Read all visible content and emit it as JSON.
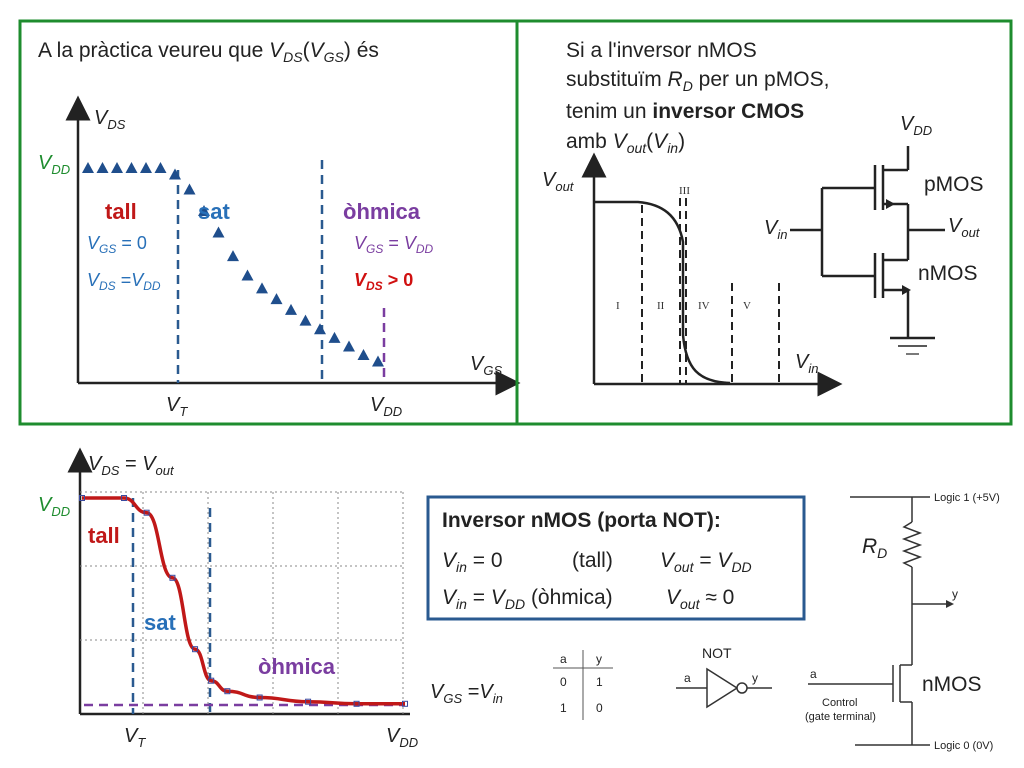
{
  "top_left": {
    "title_prefix": "A la pràctica veureu que ",
    "title_v": "V",
    "title_sub1": "DS",
    "title_paren_open": "(",
    "title_v2": "V",
    "title_sub2": "GS",
    "title_suffix": ") és",
    "y_axis": {
      "v": "V",
      "sub": "DS"
    },
    "x_axis": {
      "v": "V",
      "sub": "GS"
    },
    "vdd_y": {
      "v": "V",
      "sub": "DD"
    },
    "vt_x": {
      "v": "V",
      "sub": "T"
    },
    "vdd_x": {
      "v": "V",
      "sub": "DD"
    },
    "region_tall": "tall",
    "region_sat": "sat",
    "region_ohmica": "òhmica",
    "cond_tall_1": {
      "v": "V",
      "sub": "GS",
      "rest": " = 0"
    },
    "cond_tall_2": {
      "v": "V",
      "sub": "DS",
      "eq": " =",
      "v2": "V",
      "sub2": "DD"
    },
    "cond_ohm_1": {
      "v": "V",
      "sub": "GS",
      "eq": " = ",
      "v2": "V",
      "sub2": "DD"
    },
    "cond_ohm_2": {
      "v": "V",
      "sub": "DS",
      "rest": " > 0"
    }
  },
  "top_right": {
    "line1": "Si a l'inversor nMOS",
    "line2_pre": "substituïm ",
    "line2_r": "R",
    "line2_rsub": "D",
    "line2_post": " per un pMOS,",
    "line3_pre": "tenim un ",
    "line3_bold": "inversor CMOS",
    "line4_pre": "amb ",
    "line4_v": "V",
    "line4_sub": "out",
    "line4_open": "(",
    "line4_v2": "V",
    "line4_sub2": "in",
    "line4_close": ")",
    "y_axis": {
      "v": "V",
      "sub": "out"
    },
    "x_axis": {
      "v": "V",
      "sub": "in"
    },
    "regions": [
      "I",
      "II",
      "III",
      "IV",
      "V"
    ],
    "circuit": {
      "vdd": {
        "v": "V",
        "sub": "DD"
      },
      "pmos": "pMOS",
      "nmos": "nMOS",
      "vin": {
        "v": "V",
        "sub": "in"
      },
      "vout": {
        "v": "V",
        "sub": "out"
      }
    }
  },
  "bottom_left": {
    "y_axis": {
      "v": "V",
      "sub": "DS",
      "eq": " = ",
      "v2": "V",
      "sub2": "out"
    },
    "x_axis": {
      "v": "V",
      "sub": "GS",
      "eq": " =",
      "v2": "V",
      "sub2": "in"
    },
    "vdd_y": {
      "v": "V",
      "sub": "DD"
    },
    "vt_x": {
      "v": "V",
      "sub": "T"
    },
    "vdd_x": {
      "v": "V",
      "sub": "DD"
    },
    "region_tall": "tall",
    "region_sat": "sat",
    "region_ohmica": "òhmica"
  },
  "summary_box": {
    "title": "Inversor nMOS (porta NOT):",
    "row1": {
      "v": "V",
      "sub": "in",
      "eq": " = 0",
      "state": "(tall)",
      "vo": "V",
      "vo_sub": "out",
      "vo_eq": " = ",
      "vo2": "V",
      "vo2_sub": "DD"
    },
    "row2": {
      "v": "V",
      "sub": "in",
      "eq": " = ",
      "v2": "V",
      "sub2": "DD",
      "state": " (òhmica)",
      "vo": "V",
      "vo_sub": "out",
      "vo_eq": " ≈ 0"
    }
  },
  "truth_table": {
    "headers": [
      "a",
      "y"
    ],
    "rows": [
      [
        "0",
        "1"
      ],
      [
        "1",
        "0"
      ]
    ]
  },
  "not_gate": {
    "label": "NOT",
    "in": "a",
    "out": "y"
  },
  "nmos_circuit": {
    "logic1": "Logic 1 (+5V)",
    "logic0": "Logic 0 (0V)",
    "rd": {
      "v": "R",
      "sub": "D"
    },
    "y": "y",
    "a": "a",
    "control1": "Control",
    "control2": "(gate terminal)",
    "nmos": "nMOS"
  },
  "colors": {
    "frame_green": "#1e8c2e",
    "curve_blue": "#1f4e8c",
    "dashed_blue": "#2a5a90",
    "dashed_purple": "#7a3da0",
    "box_blue": "#2a5a90",
    "curve_red": "#c01818"
  },
  "chart_data": [
    {
      "type": "scatter",
      "title": "A la pràctica veureu que VDS(VGS) és",
      "xlabel": "VGS",
      "ylabel": "VDS",
      "x_ticks": [
        "VT",
        "VDD"
      ],
      "y_ticks": [
        "VDD"
      ],
      "series": [
        {
          "x": [
            0.0,
            0.05,
            0.1,
            0.15,
            0.2,
            0.25,
            0.3,
            0.35,
            0.4,
            0.45,
            0.5,
            0.55,
            0.6,
            0.65,
            0.7,
            0.75,
            0.8,
            0.85,
            0.9,
            0.95,
            1.0
          ],
          "y": [
            1.0,
            1.0,
            1.0,
            1.0,
            1.0,
            1.0,
            0.97,
            0.9,
            0.8,
            0.7,
            0.59,
            0.5,
            0.44,
            0.39,
            0.34,
            0.29,
            0.25,
            0.21,
            0.17,
            0.13,
            0.1
          ]
        }
      ]
    },
    {
      "type": "line",
      "xlabel": "Vin",
      "ylabel": "Vout",
      "x_ticks": [],
      "y_ticks": [],
      "series": [
        {
          "x": [
            0.0,
            0.2,
            0.35,
            0.45,
            0.5,
            0.5,
            0.55,
            0.7,
            1.0
          ],
          "y": [
            1.0,
            1.0,
            0.96,
            0.8,
            0.5,
            0.2,
            0.05,
            0.0,
            0.0
          ]
        }
      ]
    },
    {
      "type": "line",
      "xlabel": "VGS = Vin",
      "ylabel": "VDS = Vout",
      "x_ticks": [
        "VT",
        "VDD"
      ],
      "y_ticks": [
        "VDD"
      ],
      "series": [
        {
          "x": [
            0.0,
            0.13,
            0.2,
            0.28,
            0.35,
            0.4,
            0.45,
            0.55,
            0.7,
            0.85,
            1.0
          ],
          "y": [
            1.0,
            1.0,
            0.93,
            0.62,
            0.28,
            0.13,
            0.08,
            0.05,
            0.03,
            0.02,
            0.02
          ]
        }
      ]
    }
  ]
}
